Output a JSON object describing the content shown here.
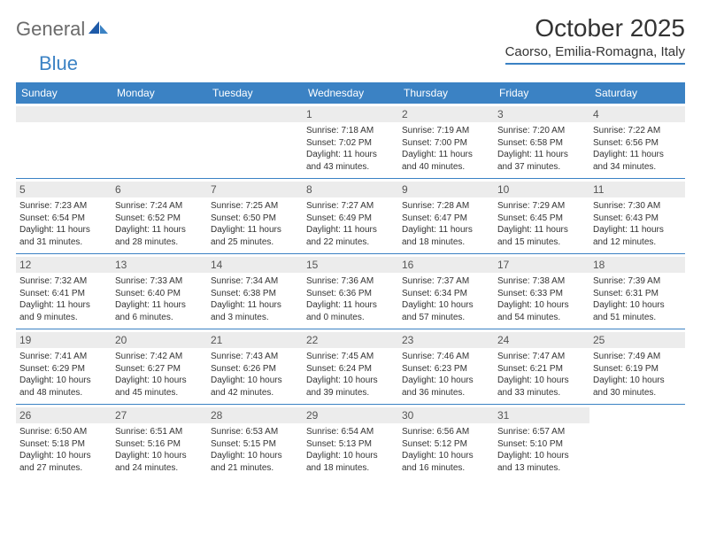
{
  "brand": {
    "name_gray": "General",
    "name_blue": "Blue"
  },
  "title": "October 2025",
  "location": "Caorso, Emilia-Romagna, Italy",
  "colors": {
    "header_bg": "#3b82c4",
    "daynum_bg": "#ececec",
    "text": "#333333",
    "logo_gray": "#6b6b6b"
  },
  "dow": [
    "Sunday",
    "Monday",
    "Tuesday",
    "Wednesday",
    "Thursday",
    "Friday",
    "Saturday"
  ],
  "weeks": [
    [
      null,
      null,
      null,
      {
        "n": "1",
        "sr": "Sunrise: 7:18 AM",
        "ss": "Sunset: 7:02 PM",
        "d1": "Daylight: 11 hours",
        "d2": "and 43 minutes."
      },
      {
        "n": "2",
        "sr": "Sunrise: 7:19 AM",
        "ss": "Sunset: 7:00 PM",
        "d1": "Daylight: 11 hours",
        "d2": "and 40 minutes."
      },
      {
        "n": "3",
        "sr": "Sunrise: 7:20 AM",
        "ss": "Sunset: 6:58 PM",
        "d1": "Daylight: 11 hours",
        "d2": "and 37 minutes."
      },
      {
        "n": "4",
        "sr": "Sunrise: 7:22 AM",
        "ss": "Sunset: 6:56 PM",
        "d1": "Daylight: 11 hours",
        "d2": "and 34 minutes."
      }
    ],
    [
      {
        "n": "5",
        "sr": "Sunrise: 7:23 AM",
        "ss": "Sunset: 6:54 PM",
        "d1": "Daylight: 11 hours",
        "d2": "and 31 minutes."
      },
      {
        "n": "6",
        "sr": "Sunrise: 7:24 AM",
        "ss": "Sunset: 6:52 PM",
        "d1": "Daylight: 11 hours",
        "d2": "and 28 minutes."
      },
      {
        "n": "7",
        "sr": "Sunrise: 7:25 AM",
        "ss": "Sunset: 6:50 PM",
        "d1": "Daylight: 11 hours",
        "d2": "and 25 minutes."
      },
      {
        "n": "8",
        "sr": "Sunrise: 7:27 AM",
        "ss": "Sunset: 6:49 PM",
        "d1": "Daylight: 11 hours",
        "d2": "and 22 minutes."
      },
      {
        "n": "9",
        "sr": "Sunrise: 7:28 AM",
        "ss": "Sunset: 6:47 PM",
        "d1": "Daylight: 11 hours",
        "d2": "and 18 minutes."
      },
      {
        "n": "10",
        "sr": "Sunrise: 7:29 AM",
        "ss": "Sunset: 6:45 PM",
        "d1": "Daylight: 11 hours",
        "d2": "and 15 minutes."
      },
      {
        "n": "11",
        "sr": "Sunrise: 7:30 AM",
        "ss": "Sunset: 6:43 PM",
        "d1": "Daylight: 11 hours",
        "d2": "and 12 minutes."
      }
    ],
    [
      {
        "n": "12",
        "sr": "Sunrise: 7:32 AM",
        "ss": "Sunset: 6:41 PM",
        "d1": "Daylight: 11 hours",
        "d2": "and 9 minutes."
      },
      {
        "n": "13",
        "sr": "Sunrise: 7:33 AM",
        "ss": "Sunset: 6:40 PM",
        "d1": "Daylight: 11 hours",
        "d2": "and 6 minutes."
      },
      {
        "n": "14",
        "sr": "Sunrise: 7:34 AM",
        "ss": "Sunset: 6:38 PM",
        "d1": "Daylight: 11 hours",
        "d2": "and 3 minutes."
      },
      {
        "n": "15",
        "sr": "Sunrise: 7:36 AM",
        "ss": "Sunset: 6:36 PM",
        "d1": "Daylight: 11 hours",
        "d2": "and 0 minutes."
      },
      {
        "n": "16",
        "sr": "Sunrise: 7:37 AM",
        "ss": "Sunset: 6:34 PM",
        "d1": "Daylight: 10 hours",
        "d2": "and 57 minutes."
      },
      {
        "n": "17",
        "sr": "Sunrise: 7:38 AM",
        "ss": "Sunset: 6:33 PM",
        "d1": "Daylight: 10 hours",
        "d2": "and 54 minutes."
      },
      {
        "n": "18",
        "sr": "Sunrise: 7:39 AM",
        "ss": "Sunset: 6:31 PM",
        "d1": "Daylight: 10 hours",
        "d2": "and 51 minutes."
      }
    ],
    [
      {
        "n": "19",
        "sr": "Sunrise: 7:41 AM",
        "ss": "Sunset: 6:29 PM",
        "d1": "Daylight: 10 hours",
        "d2": "and 48 minutes."
      },
      {
        "n": "20",
        "sr": "Sunrise: 7:42 AM",
        "ss": "Sunset: 6:27 PM",
        "d1": "Daylight: 10 hours",
        "d2": "and 45 minutes."
      },
      {
        "n": "21",
        "sr": "Sunrise: 7:43 AM",
        "ss": "Sunset: 6:26 PM",
        "d1": "Daylight: 10 hours",
        "d2": "and 42 minutes."
      },
      {
        "n": "22",
        "sr": "Sunrise: 7:45 AM",
        "ss": "Sunset: 6:24 PM",
        "d1": "Daylight: 10 hours",
        "d2": "and 39 minutes."
      },
      {
        "n": "23",
        "sr": "Sunrise: 7:46 AM",
        "ss": "Sunset: 6:23 PM",
        "d1": "Daylight: 10 hours",
        "d2": "and 36 minutes."
      },
      {
        "n": "24",
        "sr": "Sunrise: 7:47 AM",
        "ss": "Sunset: 6:21 PM",
        "d1": "Daylight: 10 hours",
        "d2": "and 33 minutes."
      },
      {
        "n": "25",
        "sr": "Sunrise: 7:49 AM",
        "ss": "Sunset: 6:19 PM",
        "d1": "Daylight: 10 hours",
        "d2": "and 30 minutes."
      }
    ],
    [
      {
        "n": "26",
        "sr": "Sunrise: 6:50 AM",
        "ss": "Sunset: 5:18 PM",
        "d1": "Daylight: 10 hours",
        "d2": "and 27 minutes."
      },
      {
        "n": "27",
        "sr": "Sunrise: 6:51 AM",
        "ss": "Sunset: 5:16 PM",
        "d1": "Daylight: 10 hours",
        "d2": "and 24 minutes."
      },
      {
        "n": "28",
        "sr": "Sunrise: 6:53 AM",
        "ss": "Sunset: 5:15 PM",
        "d1": "Daylight: 10 hours",
        "d2": "and 21 minutes."
      },
      {
        "n": "29",
        "sr": "Sunrise: 6:54 AM",
        "ss": "Sunset: 5:13 PM",
        "d1": "Daylight: 10 hours",
        "d2": "and 18 minutes."
      },
      {
        "n": "30",
        "sr": "Sunrise: 6:56 AM",
        "ss": "Sunset: 5:12 PM",
        "d1": "Daylight: 10 hours",
        "d2": "and 16 minutes."
      },
      {
        "n": "31",
        "sr": "Sunrise: 6:57 AM",
        "ss": "Sunset: 5:10 PM",
        "d1": "Daylight: 10 hours",
        "d2": "and 13 minutes."
      },
      null
    ]
  ]
}
